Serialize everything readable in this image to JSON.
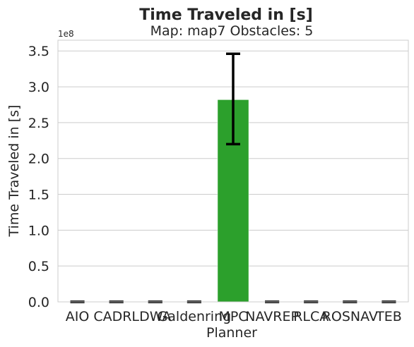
{
  "chart_data": {
    "type": "bar",
    "title": "Time Traveled in [s]",
    "subtitle": "Map: map7 Obstacles: 5",
    "xlabel": "Planner",
    "ylabel": "Time Traveled in [s]",
    "y_offset_label": "1e8",
    "y_scale": 100000000,
    "ylim": [
      0,
      3.65
    ],
    "yticks": [
      0.0,
      0.5,
      1.0,
      1.5,
      2.0,
      2.5,
      3.0,
      3.5
    ],
    "ytick_labels": [
      "0.0",
      "0.5",
      "1.0",
      "1.5",
      "2.0",
      "2.5",
      "3.0",
      "3.5"
    ],
    "grid": "horizontal",
    "categories": [
      "AIO",
      "CADRL",
      "DWA",
      "Galdenring",
      "MPC",
      "NAVREP",
      "RLCA",
      "ROSNAV",
      "TEB"
    ],
    "values": [
      0,
      0,
      0,
      0,
      2.82,
      0,
      0,
      0,
      0
    ],
    "error_low": [
      0,
      0,
      0,
      0,
      2.2,
      0,
      0,
      0,
      0
    ],
    "error_high": [
      0,
      0,
      0,
      0,
      3.46,
      0,
      0,
      0,
      0
    ],
    "colors": {
      "MPC": "#2ca02c",
      "grid": "#cccccc",
      "axes_edge": "#cccccc",
      "errorbar": "#000000"
    }
  }
}
